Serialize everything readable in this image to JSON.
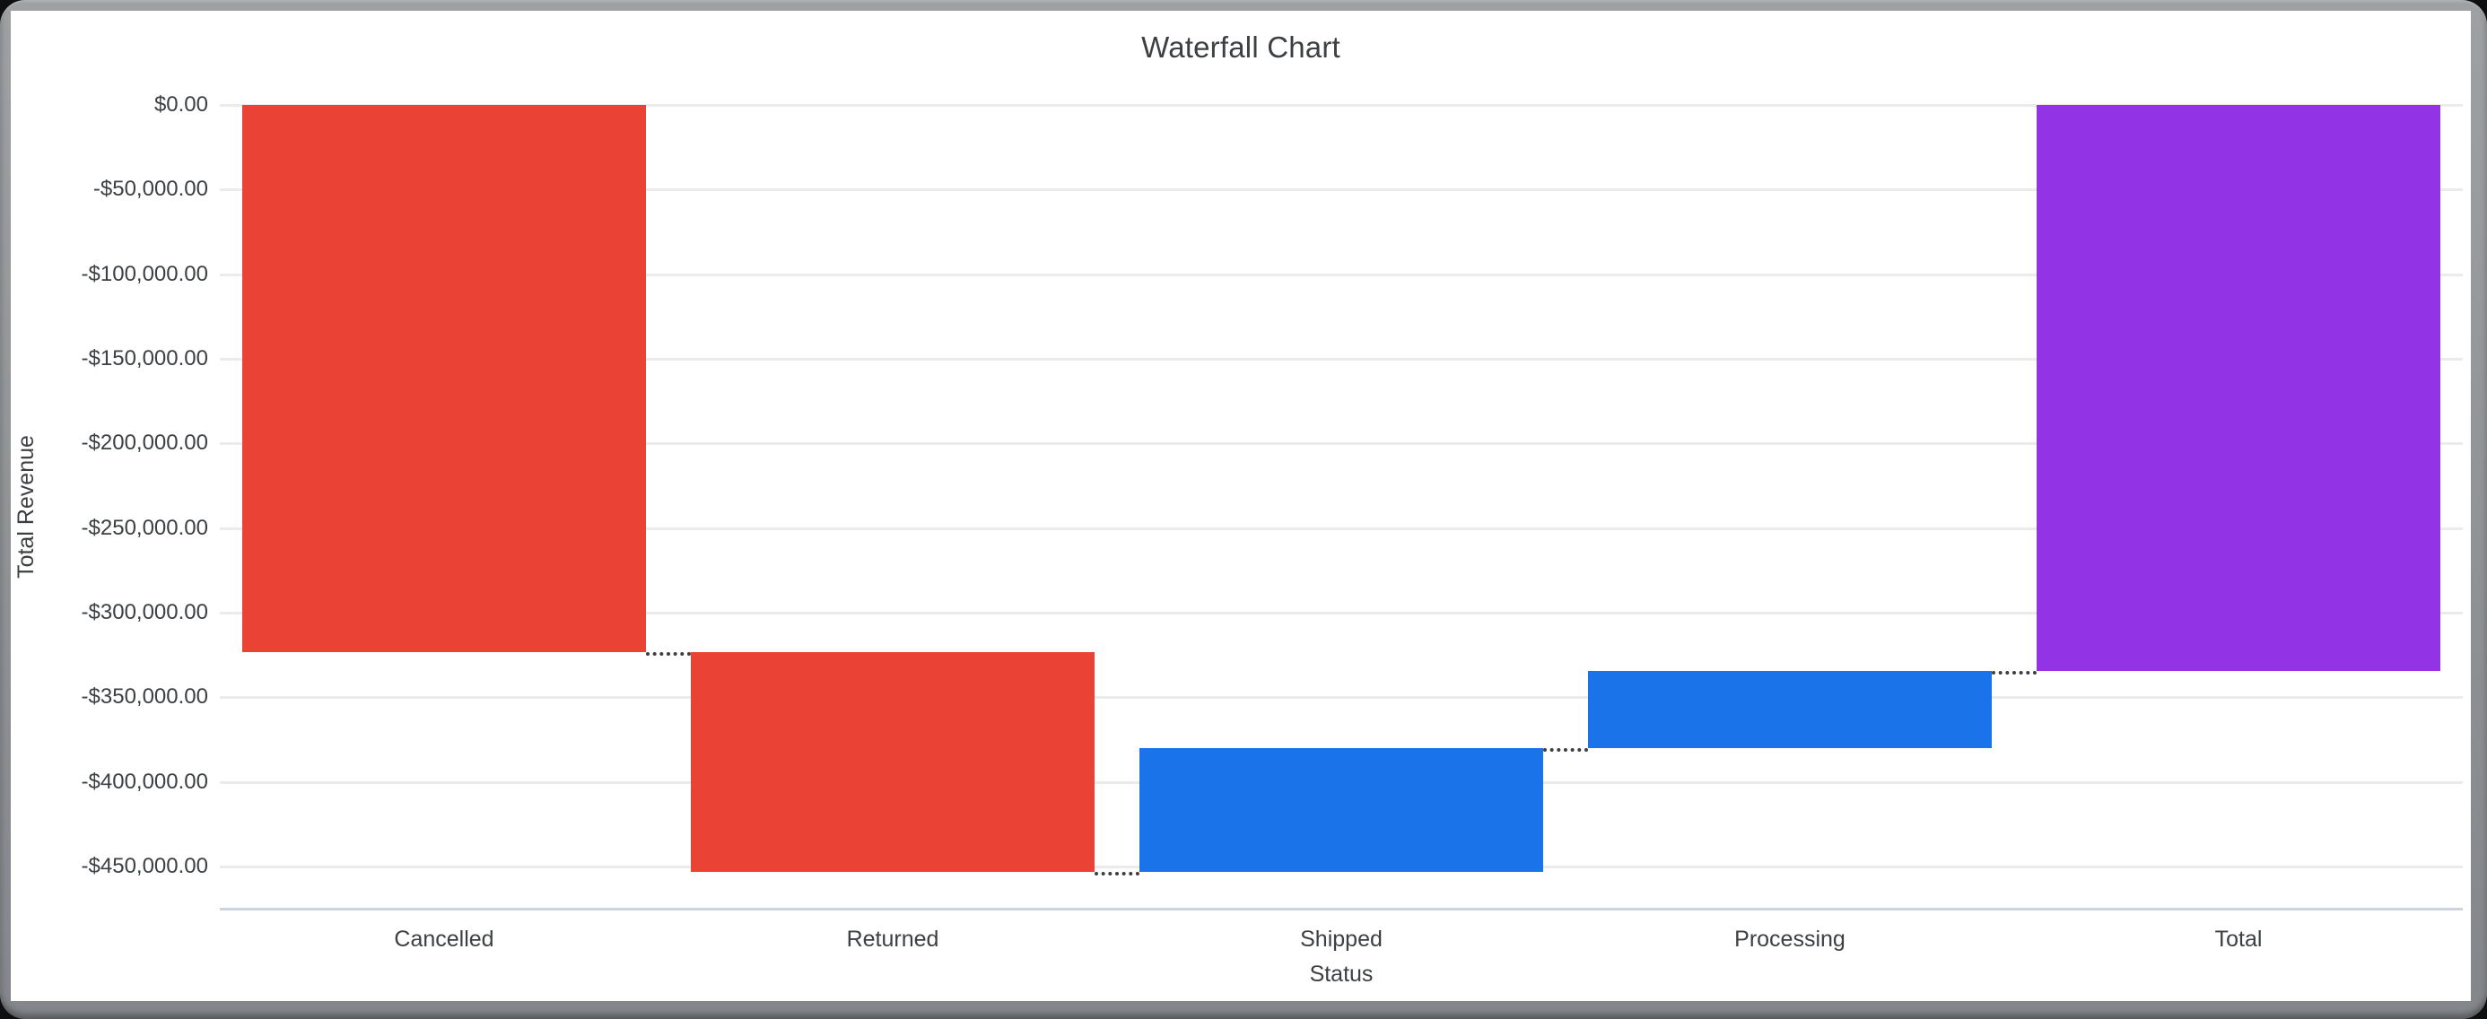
{
  "chart_data": {
    "type": "waterfall",
    "title": "Waterfall Chart",
    "xlabel": "Status",
    "ylabel": "Total Revenue",
    "categories": [
      "Cancelled",
      "Returned",
      "Shipped",
      "Processing",
      "Total"
    ],
    "bars": [
      {
        "label": "Cancelled",
        "delta": -323500,
        "role": "decrease",
        "cumulative_end": -323500
      },
      {
        "label": "Returned",
        "delta": -129700,
        "role": "decrease",
        "cumulative_end": -453200
      },
      {
        "label": "Shipped",
        "delta": 73200,
        "role": "increase",
        "cumulative_end": -380000
      },
      {
        "label": "Processing",
        "delta": 45400,
        "role": "increase",
        "cumulative_end": -334600
      },
      {
        "label": "Total",
        "delta": -334600,
        "role": "total",
        "cumulative_end": -334600
      }
    ],
    "y_axis": {
      "ylim": [
        0,
        -475000
      ],
      "ticks": [
        {
          "value": 0,
          "label": "$0.00"
        },
        {
          "value": -50000,
          "label": "-$50,000.00"
        },
        {
          "value": -100000,
          "label": "-$100,000.00"
        },
        {
          "value": -150000,
          "label": "-$150,000.00"
        },
        {
          "value": -200000,
          "label": "-$200,000.00"
        },
        {
          "value": -250000,
          "label": "-$250,000.00"
        },
        {
          "value": -300000,
          "label": "-$300,000.00"
        },
        {
          "value": -350000,
          "label": "-$350,000.00"
        },
        {
          "value": -400000,
          "label": "-$400,000.00"
        },
        {
          "value": -450000,
          "label": "-$450,000.00"
        }
      ]
    },
    "grid": true,
    "legend": "none",
    "colors": {
      "decrease": "#EA4335",
      "increase": "#1A73E8",
      "total": "#9233E5",
      "connector": "#3C4043",
      "gridline": "#EBEBEB",
      "axis_line": "#CCD4E0",
      "text": "#3C4043"
    }
  }
}
